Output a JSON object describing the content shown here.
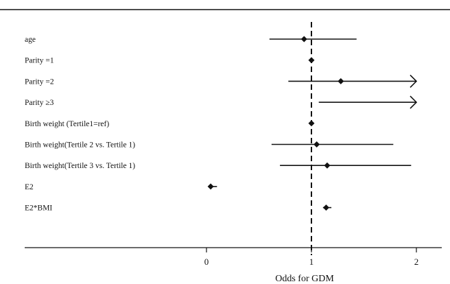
{
  "chart_data": {
    "type": "forest",
    "xlabel": "Odds for GDM",
    "x_ticks": [
      0,
      1,
      2
    ],
    "x_tick_labels": [
      "0",
      "1",
      "2"
    ],
    "xlim": [
      -1.75,
      2.2
    ],
    "reference_line": 1,
    "reference_line_style": "dashed",
    "grid": false,
    "rows": [
      {
        "label": "age",
        "estimate": 0.93,
        "lower": 0.6,
        "upper": 1.43,
        "arrow": false
      },
      {
        "label": "Parity =1",
        "estimate": 1.0,
        "lower": null,
        "upper": null,
        "arrow": false
      },
      {
        "label": "Parity =2",
        "estimate": 1.28,
        "lower": 0.78,
        "upper": 2.0,
        "arrow": true
      },
      {
        "label": "Parity ≥3",
        "estimate": null,
        "lower": 1.07,
        "upper": 2.0,
        "arrow": true
      },
      {
        "label": "Birth weight (Tertile1=ref)",
        "estimate": 1.0,
        "lower": null,
        "upper": null,
        "arrow": false
      },
      {
        "label": "Birth weight(Tertile 2 vs. Tertile 1)",
        "estimate": 1.05,
        "lower": 0.62,
        "upper": 1.78,
        "arrow": false
      },
      {
        "label": "Birth weight(Tertile 3 vs. Tertile 1)",
        "estimate": 1.15,
        "lower": 0.7,
        "upper": 1.95,
        "arrow": false
      },
      {
        "label": "E2",
        "estimate": 0.04,
        "lower": 0.02,
        "upper": 0.1,
        "arrow": false
      },
      {
        "label": "E2*BMI",
        "estimate": 1.14,
        "lower": 1.11,
        "upper": 1.19,
        "arrow": false
      }
    ]
  }
}
